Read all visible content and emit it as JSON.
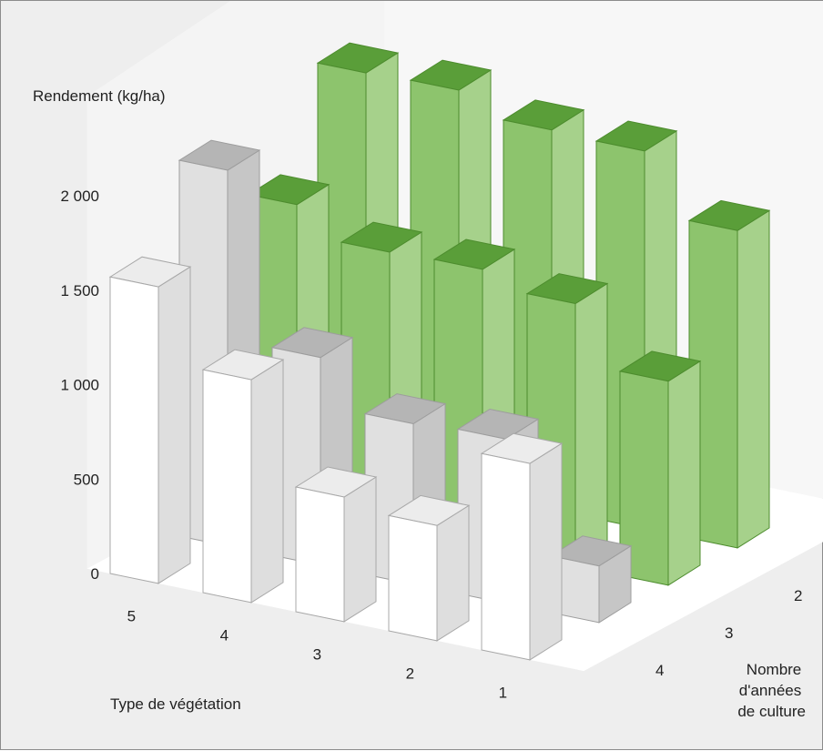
{
  "chart_data": {
    "type": "bar",
    "variant": "3d-bar",
    "ylabel": "Rendement (kg/ha)",
    "xlabel": "Type de végétation",
    "zlabel": [
      "Nombre",
      "d'années",
      "de culture"
    ],
    "ylim": [
      0,
      2000
    ],
    "ytick_labels": [
      "0",
      "500",
      "1 000",
      "1 500",
      "2 000"
    ],
    "x_categories": [
      "5",
      "4",
      "3",
      "2",
      "1"
    ],
    "z_categories": [
      "1",
      "2",
      "3",
      "4"
    ],
    "series": [
      {
        "values": [
          2110,
          2120,
          2010,
          2000,
          1680
        ]
      },
      {
        "values": [
          1610,
          1460,
          1470,
          1390,
          1080
        ]
      },
      {
        "values": [
          1990,
          1100,
          850,
          870,
          300
        ]
      },
      {
        "values": [
          1570,
          1180,
          660,
          610,
          1040
        ]
      }
    ]
  },
  "colors": {
    "background": "#eeeeee",
    "floor": "#ffffff",
    "frame": "#8c8c8c",
    "green_front": "#8dc46d",
    "green_side": "#a6d18b",
    "green_top": "#5a9e39",
    "grey_front": "#e0e0e0",
    "grey_side": "#c6c6c6",
    "grey_top": "#b5b5b5",
    "white_front": "#ffffff",
    "white_side": "#dedede",
    "white_top": "#ececec"
  }
}
